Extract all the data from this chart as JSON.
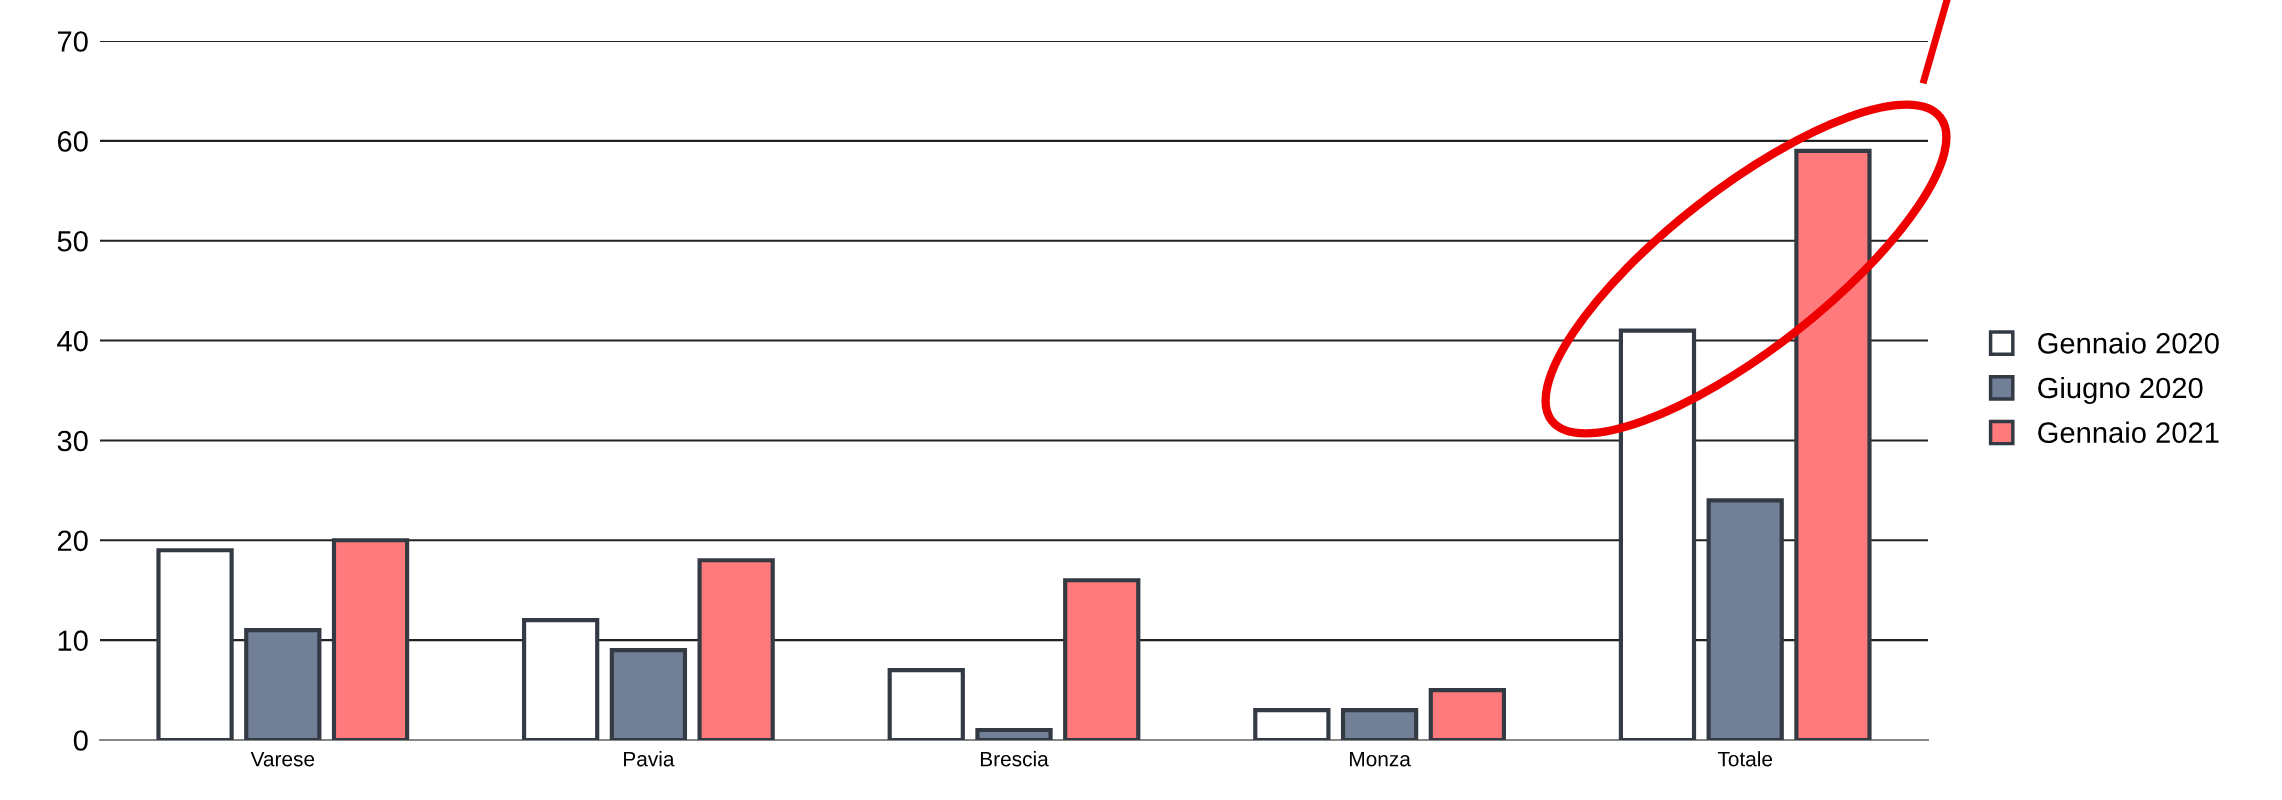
{
  "chart_data": {
    "type": "bar",
    "categories": [
      "Varese",
      "Pavia",
      "Brescia",
      "Monza",
      "Totale"
    ],
    "series": [
      {
        "name": "Gennaio 2020",
        "color": "#ffffff",
        "values": [
          19,
          12,
          7,
          3,
          41
        ]
      },
      {
        "name": "Giugno 2020",
        "color": "#718096",
        "values": [
          11,
          9,
          1,
          3,
          24
        ]
      },
      {
        "name": "Gennaio 2021",
        "color": "#ff7a7d",
        "values": [
          20,
          18,
          16,
          5,
          59
        ]
      }
    ],
    "ylim": [
      0,
      70
    ],
    "yticks": [
      0,
      10,
      20,
      30,
      40,
      50,
      60,
      70
    ],
    "grid": "y",
    "legend": "right"
  }
}
